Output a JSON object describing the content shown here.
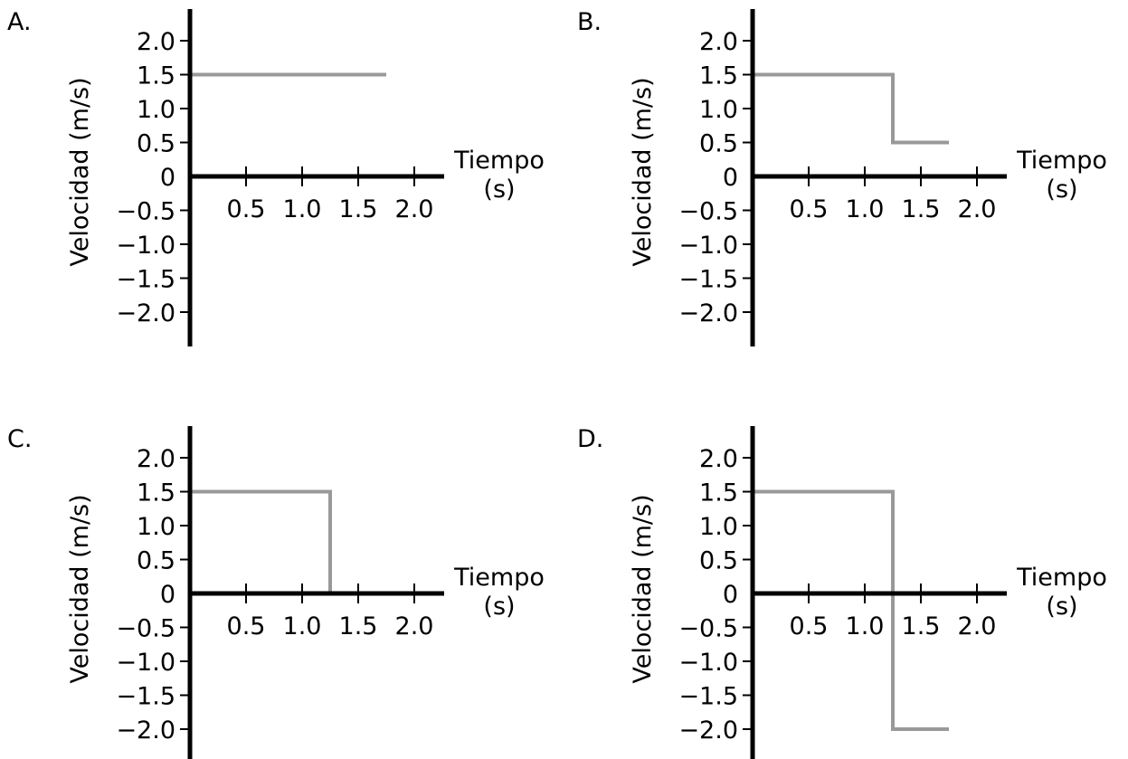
{
  "chart_data": [
    {
      "type": "line",
      "label": "A.",
      "xlabel": "Tiempo\n(s)",
      "ylabel": "Velocidad (m/s)",
      "x_ticks": [
        "0.5",
        "1.0",
        "1.5",
        "2.0"
      ],
      "y_ticks": [
        "2.0",
        "1.5",
        "1.0",
        "0.5",
        "0",
        "−0.5",
        "−1.0",
        "−1.5",
        "−2.0"
      ],
      "xlim": [
        0,
        2.2
      ],
      "ylim": [
        -2.5,
        2.5
      ],
      "grid": false,
      "color": "#999999",
      "series": [
        {
          "x": [
            0,
            1.75
          ],
          "y": [
            1.5,
            1.5
          ]
        }
      ]
    },
    {
      "type": "line",
      "label": "B.",
      "xlabel": "Tiempo\n(s)",
      "ylabel": "Velocidad (m/s)",
      "x_ticks": [
        "0.5",
        "1.0",
        "1.5",
        "2.0"
      ],
      "y_ticks": [
        "2.0",
        "1.5",
        "1.0",
        "0.5",
        "0",
        "−0.5",
        "−1.0",
        "−1.5",
        "−2.0"
      ],
      "xlim": [
        0,
        2.2
      ],
      "ylim": [
        -2.5,
        2.5
      ],
      "grid": false,
      "color": "#999999",
      "series": [
        {
          "x": [
            0,
            1.25,
            1.25,
            1.75
          ],
          "y": [
            1.5,
            1.5,
            0.5,
            0.5
          ]
        }
      ]
    },
    {
      "type": "line",
      "label": "C.",
      "xlabel": "Tiempo\n(s)",
      "ylabel": "Velocidad (m/s)",
      "x_ticks": [
        "0.5",
        "1.0",
        "1.5",
        "2.0"
      ],
      "y_ticks": [
        "2.0",
        "1.5",
        "1.0",
        "0.5",
        "0",
        "−0.5",
        "−1.0",
        "−1.5",
        "−2.0"
      ],
      "xlim": [
        0,
        2.2
      ],
      "ylim": [
        -2.5,
        2.5
      ],
      "grid": false,
      "color": "#999999",
      "series": [
        {
          "x": [
            0,
            1.25,
            1.25,
            1.75
          ],
          "y": [
            1.5,
            1.5,
            0,
            0
          ]
        }
      ]
    },
    {
      "type": "line",
      "label": "D.",
      "xlabel": "Tiempo\n(s)",
      "ylabel": "Velocidad (m/s)",
      "x_ticks": [
        "0.5",
        "1.0",
        "1.5",
        "2.0"
      ],
      "y_ticks": [
        "2.0",
        "1.5",
        "1.0",
        "0.5",
        "0",
        "−0.5",
        "−1.0",
        "−1.5",
        "−2.0"
      ],
      "xlim": [
        0,
        2.2
      ],
      "ylim": [
        -2.5,
        2.5
      ],
      "grid": false,
      "color": "#999999",
      "series": [
        {
          "x": [
            0,
            1.25,
            1.25,
            1.75
          ],
          "y": [
            1.5,
            1.5,
            -2.0,
            -2.0
          ]
        }
      ]
    }
  ]
}
